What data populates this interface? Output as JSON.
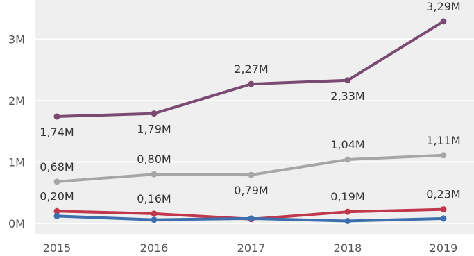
{
  "chart_data": {
    "type": "line",
    "x": [
      "2015",
      "2016",
      "2017",
      "2018",
      "2019"
    ],
    "ylim": [
      0,
      3500000
    ],
    "yticks": [
      {
        "value": 0,
        "label": "0M"
      },
      {
        "value": 1000000,
        "label": "1M"
      },
      {
        "value": 2000000,
        "label": "2M"
      },
      {
        "value": 3000000,
        "label": "3M"
      }
    ],
    "grid": true,
    "series": [
      {
        "color": "#7a4a73",
        "values": [
          1740000,
          1790000,
          2270000,
          2330000,
          3290000
        ],
        "labels": [
          "1,74M",
          "1,79M",
          "2,27M",
          "2,33M",
          "3,29M"
        ],
        "label_pos": [
          "below",
          "below",
          "above",
          "below",
          "above"
        ]
      },
      {
        "color": "#a6a6a6",
        "values": [
          680000,
          800000,
          790000,
          1040000,
          1110000
        ],
        "labels": [
          "0,68M",
          "0,80M",
          "0,79M",
          "1,04M",
          "1,11M"
        ],
        "label_pos": [
          "above",
          "above",
          "below",
          "above",
          "above"
        ]
      },
      {
        "color": "#c0364a",
        "values": [
          200000,
          160000,
          70000,
          190000,
          230000
        ],
        "labels": [
          "0,20M",
          "0,16M",
          "",
          "0,19M",
          "0,23M"
        ],
        "label_pos": [
          "above",
          "above",
          "above",
          "above",
          "above"
        ]
      },
      {
        "color": "#3d6fae",
        "values": [
          120000,
          60000,
          80000,
          40000,
          80000
        ],
        "labels": [
          "",
          "",
          "",
          "",
          ""
        ],
        "label_pos": [
          "above",
          "above",
          "above",
          "above",
          "above"
        ]
      }
    ]
  }
}
